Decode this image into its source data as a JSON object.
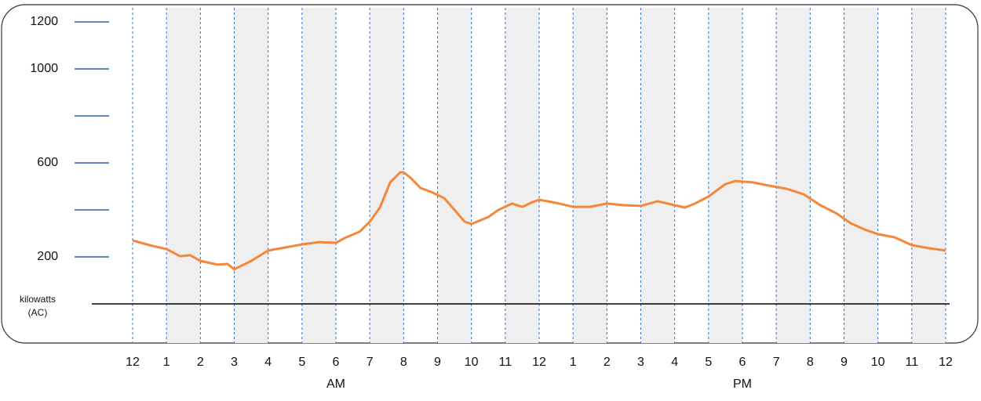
{
  "chart_data": {
    "type": "line",
    "y_label": [
      "kilowatts",
      "(AC)"
    ],
    "period_labels": [
      {
        "value": 6,
        "label": "AM"
      },
      {
        "value": 18,
        "label": "PM"
      }
    ],
    "x": [
      0,
      0.5,
      1,
      1.4,
      1.7,
      2,
      2.5,
      2.8,
      3,
      3.5,
      4,
      4.5,
      5,
      5.5,
      6,
      6.3,
      6.7,
      7,
      7.3,
      7.6,
      7.9,
      8,
      8.2,
      8.5,
      8.8,
      9.2,
      9.5,
      9.8,
      10,
      10.5,
      10.8,
      11.2,
      11.5,
      11.8,
      12,
      12.5,
      13,
      13.5,
      14,
      14.5,
      15,
      15.5,
      16,
      16.3,
      16.6,
      17,
      17.5,
      17.8,
      18.3,
      18.8,
      19.3,
      19.8,
      20.3,
      20.8,
      21.2,
      21.6,
      22,
      22.5,
      23,
      23.5,
      24
    ],
    "series": [
      {
        "color": "#f4873a",
        "values": [
          270,
          250,
          233,
          203,
          207,
          183,
          167,
          170,
          147,
          183,
          227,
          240,
          253,
          263,
          260,
          283,
          307,
          350,
          410,
          517,
          560,
          560,
          537,
          493,
          477,
          450,
          400,
          350,
          340,
          370,
          400,
          427,
          413,
          433,
          443,
          430,
          413,
          413,
          427,
          420,
          417,
          437,
          420,
          410,
          427,
          457,
          510,
          523,
          517,
          503,
          490,
          467,
          420,
          383,
          343,
          317,
          297,
          283,
          250,
          237,
          227
        ]
      }
    ],
    "xlim": [
      0,
      24
    ],
    "xticks": [
      {
        "value": 0,
        "label": "12"
      },
      1,
      2,
      3,
      4,
      5,
      6,
      7,
      8,
      9,
      10,
      11,
      12,
      {
        "value": 13,
        "label": "1"
      },
      {
        "value": 14,
        "label": "2"
      },
      {
        "value": 15,
        "label": "3"
      },
      {
        "value": 16,
        "label": "4"
      },
      {
        "value": 17,
        "label": "5"
      },
      {
        "value": 18,
        "label": "6"
      },
      {
        "value": 19,
        "label": "7"
      },
      {
        "value": 20,
        "label": "8"
      },
      {
        "value": 21,
        "label": "9"
      },
      {
        "value": 22,
        "label": "10"
      },
      {
        "value": 23,
        "label": "11"
      },
      {
        "value": 24,
        "label": "12"
      }
    ],
    "ylim": [
      0,
      1200
    ],
    "yticks": [
      200,
      600,
      1000,
      1200
    ],
    "yminor_ticks": [
      400,
      800
    ]
  }
}
